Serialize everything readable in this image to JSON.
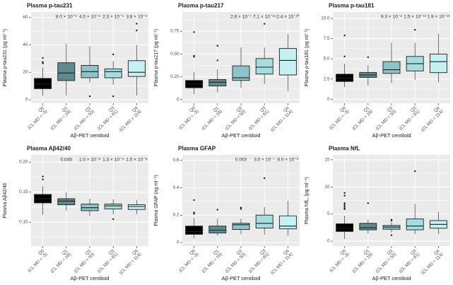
{
  "figure": {
    "background": "#ffffff",
    "panel_bg": "#ebebeb",
    "grid_color": "#ffffff",
    "box_stroke": "#1f1f1f",
    "whisker_color": "#4d4d4d",
    "outlier_color": "#1a1a1a",
    "tick_color": "#333333",
    "box_colors": [
      "#000000",
      "#5f8a8c",
      "#8ec4c5",
      "#a6dedf",
      "#c5f1f2"
    ],
    "xlabel": "Aβ-PET centiloid",
    "categories": [
      {
        "q": "Q0",
        "cl": "(CL MD = -3)"
      },
      {
        "q": "Q1",
        "cl": "(CL MD = 18)"
      },
      {
        "q": "Q2",
        "cl": "(CL MD = 50)"
      },
      {
        "q": "Q3",
        "cl": "(CL MD = 81)"
      },
      {
        "q": "Q4",
        "cl": "(CL MD = 114)"
      }
    ]
  },
  "chart_data": [
    {
      "type": "box",
      "title": "Plasma p-tau231",
      "ylabel": "Plasma p-tau231 (pg ml⁻¹)",
      "ylim": [
        -2.6,
        64
      ],
      "yticks": [
        {
          "v": 0,
          "label": "0"
        },
        {
          "v": 20,
          "label": "20"
        },
        {
          "v": 40,
          "label": "40"
        },
        {
          "v": 60,
          "label": "60"
        }
      ],
      "pvalues": [
        {
          "cat": 1,
          "text": "8.0 × 10⁻⁶"
        },
        {
          "cat": 2,
          "text": "4.0 × 10⁻⁶"
        },
        {
          "cat": 3,
          "text": "2.3 × 10⁻⁵"
        },
        {
          "cat": 4,
          "text": "3.8 × 10⁻⁶"
        }
      ],
      "boxes": [
        {
          "lo": 3,
          "q1": 8,
          "med": 11.5,
          "q3": 15.5,
          "hi": 23.5,
          "outliers": [
            26.5,
            27.5,
            30.5
          ]
        },
        {
          "lo": 3,
          "q1": 14,
          "med": 19.5,
          "q3": 27,
          "hi": 41,
          "outliers": []
        },
        {
          "lo": 12.5,
          "q1": 16,
          "med": 20.5,
          "q3": 25,
          "hi": 39,
          "outliers": [
            2.5
          ]
        },
        {
          "lo": 11,
          "q1": 16,
          "med": 20.5,
          "q3": 22.5,
          "hi": 28,
          "outliers": [
            33,
            2.5
          ]
        },
        {
          "lo": 3,
          "q1": 17,
          "med": 20,
          "q3": 28.5,
          "hi": 40,
          "outliers": [
            50.5,
            55.5
          ]
        }
      ]
    },
    {
      "type": "box",
      "title": "Plasma p-tau217",
      "ylabel": "Plasma p-tau217 (pg ml⁻¹)",
      "ylim": [
        -0.04,
        0.96
      ],
      "yticks": [
        {
          "v": 0,
          "label": "0"
        },
        {
          "v": 0.25,
          "label": "0.25"
        },
        {
          "v": 0.5,
          "label": "0.50"
        },
        {
          "v": 0.75,
          "label": "0.75"
        }
      ],
      "pvalues": [
        {
          "cat": 2,
          "text": "2.6 × 10⁻⁷"
        },
        {
          "cat": 3,
          "text": "7.1 × 10⁻¹⁵"
        },
        {
          "cat": 4,
          "text": "2.4 × 10⁻²⁰"
        }
      ],
      "boxes": [
        {
          "lo": 0.06,
          "q1": 0.13,
          "med": 0.17,
          "q3": 0.21,
          "hi": 0.3,
          "outliers": [
            0.47,
            0.48,
            0.74
          ]
        },
        {
          "lo": 0.08,
          "q1": 0.15,
          "med": 0.19,
          "q3": 0.22,
          "hi": 0.33,
          "outliers": [
            0.43,
            0.59
          ]
        },
        {
          "lo": 0.13,
          "q1": 0.21,
          "med": 0.24,
          "q3": 0.37,
          "hi": 0.57,
          "outliers": []
        },
        {
          "lo": 0.17,
          "q1": 0.28,
          "med": 0.355,
          "q3": 0.45,
          "hi": 0.57,
          "outliers": [
            0.83
          ]
        },
        {
          "lo": 0.09,
          "q1": 0.27,
          "med": 0.43,
          "q3": 0.56,
          "hi": 0.72,
          "outliers": []
        }
      ]
    },
    {
      "type": "box",
      "title": "Plasma p-tau181",
      "ylabel": "Plasma p-tau181 (pg ml⁻¹)",
      "ylim": [
        -0.5,
        10.8
      ],
      "yticks": [
        {
          "v": 0,
          "label": "0"
        },
        {
          "v": 2.5,
          "label": "2.5"
        },
        {
          "v": 5,
          "label": "5.0"
        },
        {
          "v": 7.5,
          "label": "7.5"
        },
        {
          "v": 10,
          "label": "10.0"
        }
      ],
      "pvalues": [
        {
          "cat": 2,
          "text": "9.3 × 10⁻⁶"
        },
        {
          "cat": 3,
          "text": "1.5 × 10⁻¹¹"
        },
        {
          "cat": 4,
          "text": "1.9 × 10⁻¹³"
        }
      ],
      "boxes": [
        {
          "lo": 1.5,
          "q1": 2.2,
          "med": 2.6,
          "q3": 3.1,
          "hi": 4.4,
          "outliers": [
            5.3,
            7.9
          ]
        },
        {
          "lo": 1.7,
          "q1": 2.7,
          "med": 3.0,
          "q3": 3.3,
          "hi": 4.2,
          "outliers": [
            5.2
          ]
        },
        {
          "lo": 2.0,
          "q1": 3.2,
          "med": 3.65,
          "q3": 4.65,
          "hi": 7.0,
          "outliers": []
        },
        {
          "lo": 2.4,
          "q1": 3.5,
          "med": 4.4,
          "q3": 5.3,
          "hi": 7.0,
          "outliers": [
            8.6
          ]
        },
        {
          "lo": 2.1,
          "q1": 3.3,
          "med": 4.65,
          "q3": 5.6,
          "hi": 8.1,
          "outliers": []
        }
      ]
    },
    {
      "type": "box",
      "title": "Plasma Aβ42/40",
      "ylabel": "Plasma Aβ42/40",
      "ylim": [
        0.06,
        0.212
      ],
      "yticks": [
        {
          "v": 0.1,
          "label": "0.10"
        },
        {
          "v": 0.15,
          "label": "0.15"
        },
        {
          "v": 0.2,
          "label": "0.20"
        }
      ],
      "pvalues": [
        {
          "cat": 1,
          "text": "0.045"
        },
        {
          "cat": 2,
          "text": "1.0 × 10⁻⁸"
        },
        {
          "cat": 3,
          "text": "1.3 × 10⁻⁹"
        },
        {
          "cat": 4,
          "text": "1.5 × 10⁻⁸"
        }
      ],
      "boxes": [
        {
          "lo": 0.112,
          "q1": 0.132,
          "med": 0.139,
          "q3": 0.146,
          "hi": 0.16,
          "outliers": [
            0.171,
            0.176
          ]
        },
        {
          "lo": 0.119,
          "q1": 0.129,
          "med": 0.135,
          "q3": 0.139,
          "hi": 0.15,
          "outliers": []
        },
        {
          "lo": 0.11,
          "q1": 0.119,
          "med": 0.124,
          "q3": 0.13,
          "hi": 0.139,
          "outliers": []
        },
        {
          "lo": 0.113,
          "q1": 0.122,
          "med": 0.127,
          "q3": 0.13,
          "hi": 0.138,
          "outliers": [
            0.105
          ]
        },
        {
          "lo": 0.113,
          "q1": 0.121,
          "med": 0.126,
          "q3": 0.129,
          "hi": 0.137,
          "outliers": []
        }
      ]
    },
    {
      "type": "box",
      "title": "Plasma GFAP",
      "ylabel": "Plasma GFAP (ng ml⁻¹)",
      "ylim": [
        -0.026,
        0.64
      ],
      "yticks": [
        {
          "v": 0,
          "label": "0"
        },
        {
          "v": 0.2,
          "label": "0.2"
        },
        {
          "v": 0.4,
          "label": "0.4"
        },
        {
          "v": 0.6,
          "label": "0.6"
        }
      ],
      "pvalues": [
        {
          "cat": 2,
          "text": "0.003"
        },
        {
          "cat": 3,
          "text": "3.0 × 10⁻⁷"
        },
        {
          "cat": 4,
          "text": "8.0 × 10⁻⁶"
        }
      ],
      "boxes": [
        {
          "lo": 0.03,
          "q1": 0.06,
          "med": 0.08,
          "q3": 0.12,
          "hi": 0.18,
          "outliers": [
            0.21,
            0.22,
            0.31
          ]
        },
        {
          "lo": 0.05,
          "q1": 0.07,
          "med": 0.09,
          "q3": 0.12,
          "hi": 0.175,
          "outliers": [
            0.24
          ]
        },
        {
          "lo": 0.06,
          "q1": 0.095,
          "med": 0.13,
          "q3": 0.14,
          "hi": 0.175,
          "outliers": [
            0.245,
            0.255
          ]
        },
        {
          "lo": 0.055,
          "q1": 0.105,
          "med": 0.14,
          "q3": 0.2,
          "hi": 0.26,
          "outliers": [
            0.47
          ]
        },
        {
          "lo": 0.05,
          "q1": 0.1,
          "med": 0.12,
          "q3": 0.195,
          "hi": 0.305,
          "outliers": []
        }
      ]
    },
    {
      "type": "box",
      "title": "Plasma NfL",
      "ylabel": "Plasma NfL, (pg ml⁻¹)",
      "ylim": [
        -0.9,
        15.9
      ],
      "yticks": [
        {
          "v": 0,
          "label": "0"
        },
        {
          "v": 5,
          "label": "5"
        },
        {
          "v": 10,
          "label": "10"
        },
        {
          "v": 15,
          "label": "15"
        }
      ],
      "pvalues": [],
      "boxes": [
        {
          "lo": 0.4,
          "q1": 1.8,
          "med": 2.4,
          "q3": 3.2,
          "hi": 4.7,
          "outliers": [
            5.9,
            6.1,
            6.4,
            6.7,
            7.0,
            8.4,
            8.9
          ]
        },
        {
          "lo": 1.4,
          "q1": 2.1,
          "med": 2.5,
          "q3": 3.3,
          "hi": 4.0,
          "outliers": [
            7.0
          ]
        },
        {
          "lo": 1.6,
          "q1": 2.2,
          "med": 2.6,
          "q3": 2.9,
          "hi": 3.5,
          "outliers": [
            1.1,
            3.8,
            3.95
          ]
        },
        {
          "lo": 1.3,
          "q1": 2.1,
          "med": 2.8,
          "q3": 4.1,
          "hi": 6.9,
          "outliers": [
            12.9
          ]
        },
        {
          "lo": 1.3,
          "q1": 2.4,
          "med": 3.1,
          "q3": 3.8,
          "hi": 5.4,
          "outliers": []
        }
      ]
    }
  ]
}
